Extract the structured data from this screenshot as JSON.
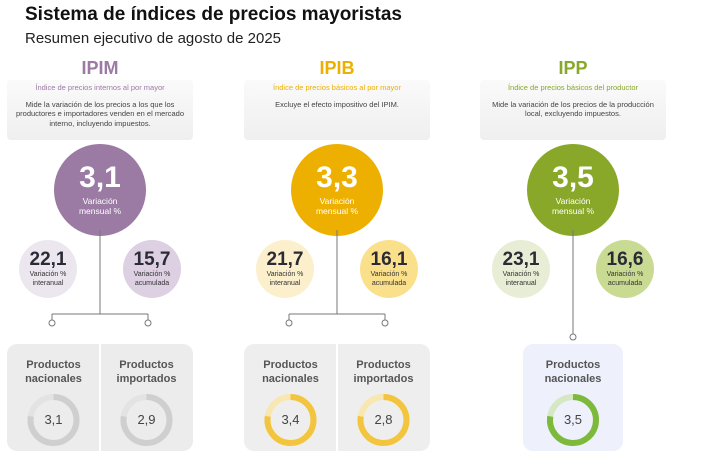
{
  "header": {
    "title": "Sistema de índices de precios mayoristas",
    "subtitle": "Resumen ejecutivo de agosto de 2025"
  },
  "indices": [
    {
      "code": "IPIM",
      "name": "Índice de precios internos al por mayor",
      "description": "Mide la variación de los precios a los que los productores e importadores venden en el mercado interno, incluyendo impuestos.",
      "color": "#9b7aa4",
      "soft": "#dcd0e2",
      "pale": "#ece7ee",
      "box": "#ececec",
      "ring": "#cfcfcf",
      "ring_light": "#e3e3e3",
      "monthly": {
        "value": "3,1",
        "label": "Variación mensual %"
      },
      "interannual": {
        "value": "22,1",
        "label": "Variación % interanual"
      },
      "cumulative": {
        "value": "15,7",
        "label": "Variación % acumulada"
      },
      "products": [
        {
          "label": "Productos nacionales",
          "value": "3,1"
        },
        {
          "label": "Productos importados",
          "value": "2,9"
        }
      ]
    },
    {
      "code": "IPIB",
      "name": "Índice de precios básicos al por mayor",
      "description": "Excluye el efecto impositivo del IPIM.",
      "color": "#eeb000",
      "soft": "#fbe08c",
      "pale": "#fcefcc",
      "box": "#eeeeee",
      "ring": "#f3c53e",
      "ring_light": "#f8e7b0",
      "monthly": {
        "value": "3,3",
        "label": "Variación mensual %"
      },
      "interannual": {
        "value": "21,7",
        "label": "Variación % interanual"
      },
      "cumulative": {
        "value": "16,1",
        "label": "Variación % acumulada"
      },
      "products": [
        {
          "label": "Productos nacionales",
          "value": "3,4"
        },
        {
          "label": "Productos importados",
          "value": "2,8"
        }
      ]
    },
    {
      "code": "IPP",
      "name": "Índice de precios básicos del productor",
      "description": "Mide la variación de los precios de la producción local, excluyendo impuestos.",
      "color": "#89a829",
      "soft": "#c9da92",
      "pale": "#e8eed5",
      "box": "#eef0fb",
      "ring": "#7dba3c",
      "ring_light": "#d5e8c2",
      "monthly": {
        "value": "3,5",
        "label": "Variación mensual %"
      },
      "interannual": {
        "value": "23,1",
        "label": "Variación % interanual"
      },
      "cumulative": {
        "value": "16,6",
        "label": "Variación % acumulada"
      },
      "products": [
        {
          "label": "Productos nacionales",
          "value": "3,5"
        }
      ]
    }
  ]
}
